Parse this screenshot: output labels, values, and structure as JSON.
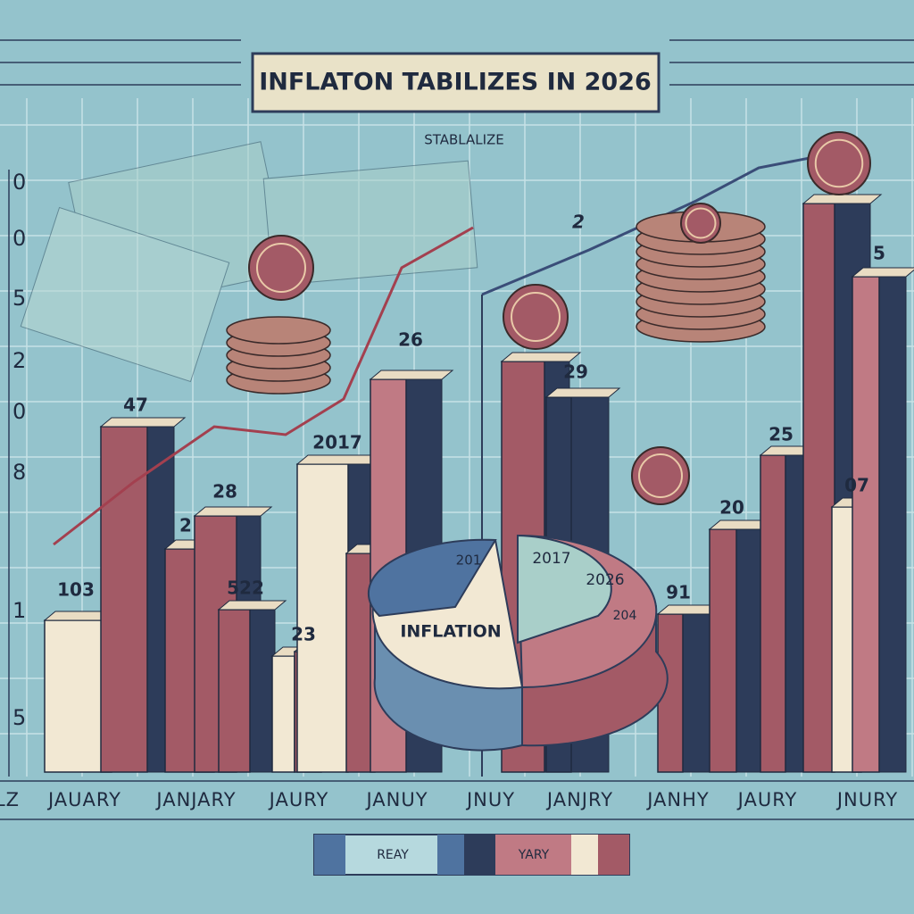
{
  "header": {
    "title": "INFLATON TABILIZES IN 2026",
    "subtitle": "STABLALIZE"
  },
  "y_labels": [
    "0",
    "0",
    "5",
    "2",
    "0",
    "8",
    "1",
    "5"
  ],
  "x_labels": [
    "LZ",
    "JAUARY",
    "JANJARY",
    "JAURY",
    "JANUY",
    "JNUY",
    "JANJRY",
    "JANHY",
    "JAURY",
    "JNURY"
  ],
  "bar_labels": [
    "103",
    "47",
    "2",
    "28",
    "522",
    "23",
    "2017",
    "26",
    "29",
    "91",
    "20",
    "25",
    "07",
    "5"
  ],
  "pie": {
    "center": "INFLATION",
    "labels": [
      "201",
      "2017",
      "2026",
      "204"
    ]
  },
  "coin_labels": [
    "2"
  ],
  "legend": [
    "REAY",
    "YARY"
  ]
}
